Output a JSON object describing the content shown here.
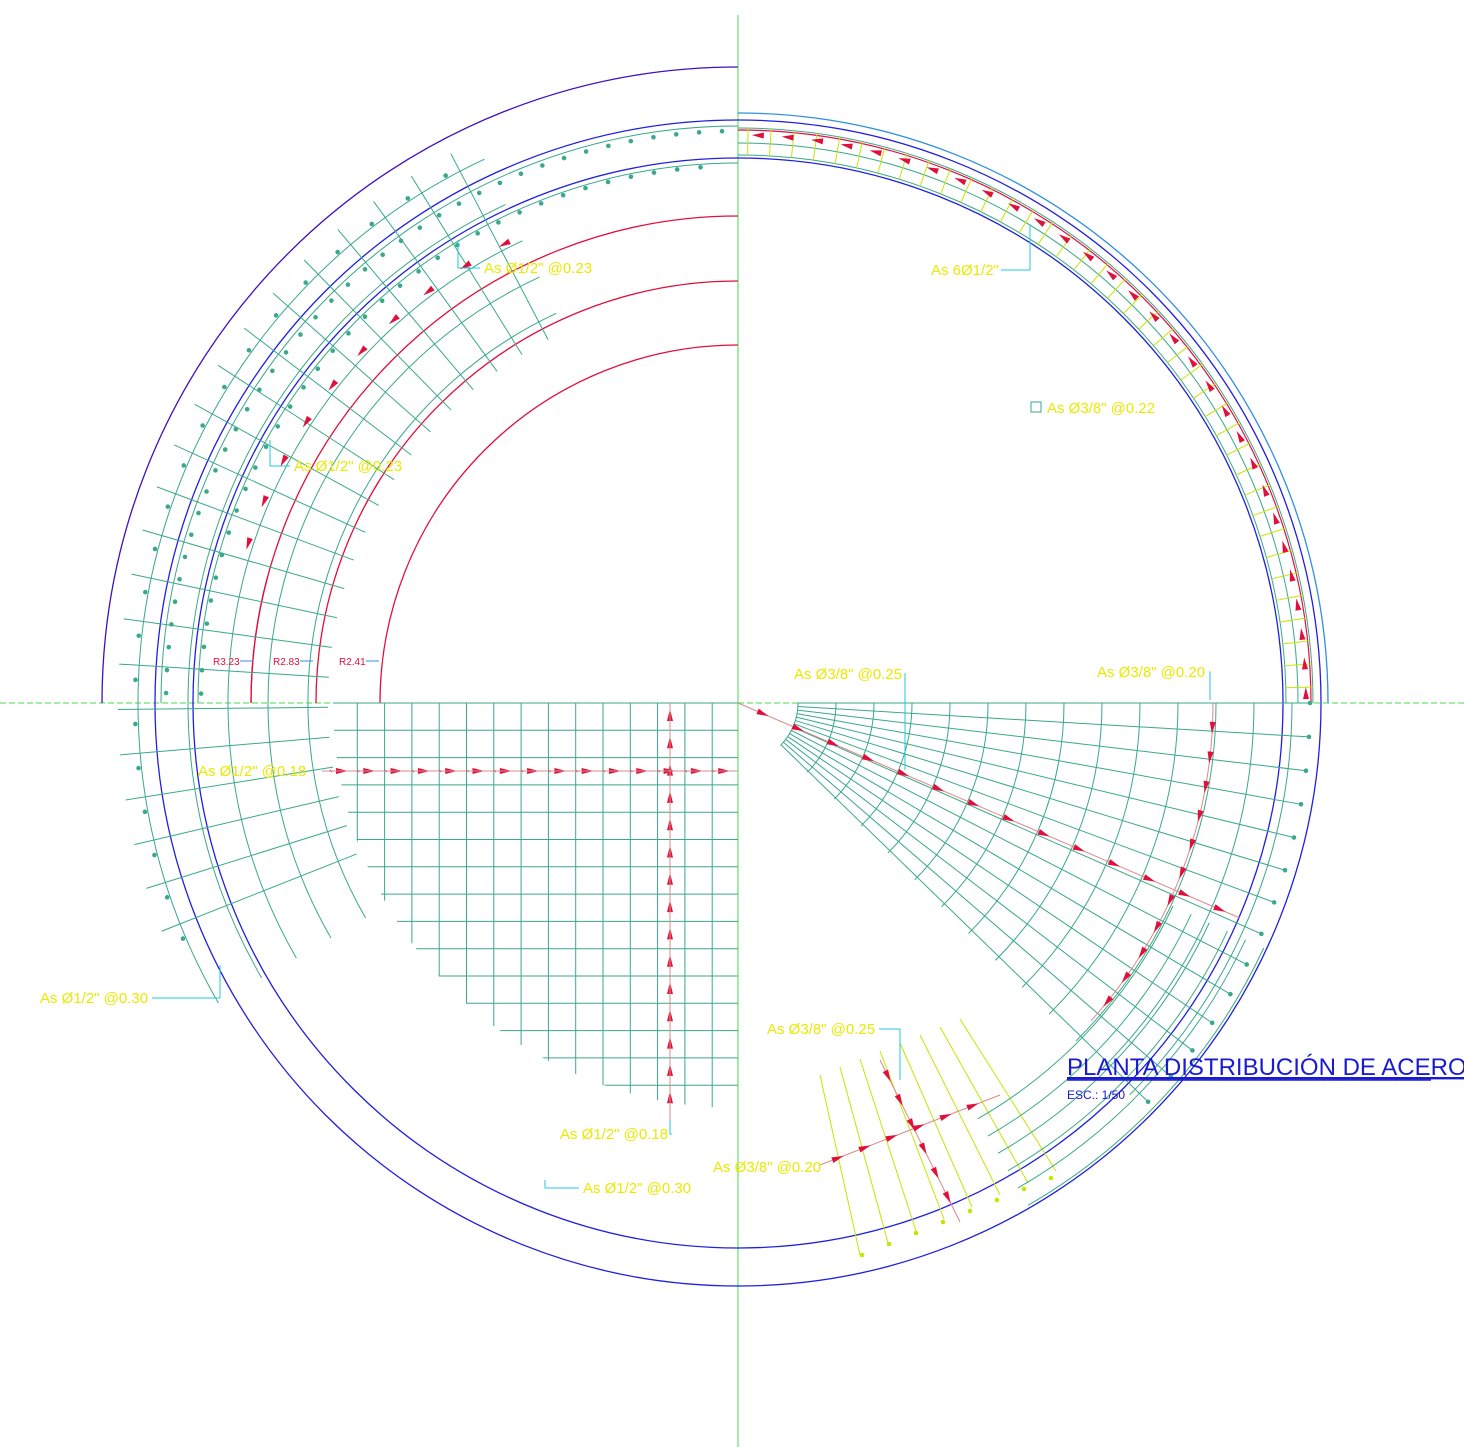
{
  "labels": [
    "As Ø1/2\" @0.23",
    "As Ø1/2\" @0.23",
    "As 6Ø1/2\"",
    "As Ø3/8\" @0.22",
    "As Ø3/8\" @0.25",
    "As Ø3/8\" @0.20",
    "R3.23",
    "R2.83",
    "R2.41",
    "As Ø1/2\" @0.18",
    "As Ø1/2\" @0.30",
    "As Ø3/8\" @0.25",
    "As Ø1/2\" @0.18",
    "As Ø3/8\" @0.20",
    "As Ø1/2\" @0.30"
  ],
  "title": "PLANTA DISTRIBUCIÓN DE ACERO",
  "scale": "ESC.: 1/50"
}
